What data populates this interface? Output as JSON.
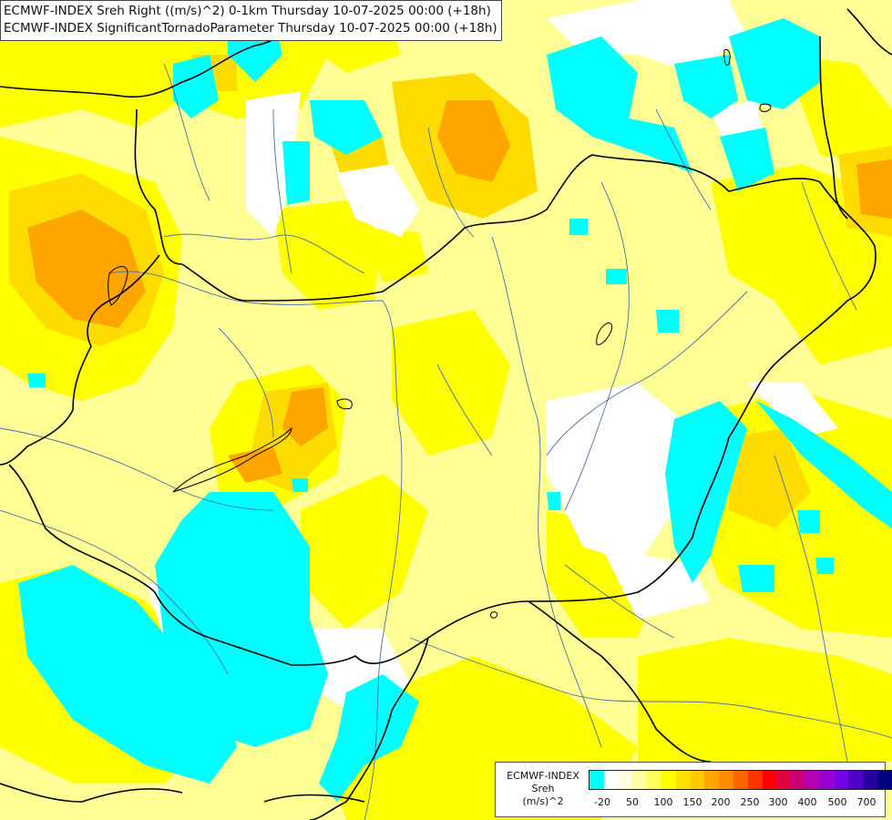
{
  "title_lines": [
    "ECMWF-INDEX Sreh Right ((m/s)^2) 0-1km Thursday 10-07-2025 00:00 (+18h)",
    "ECMWF-INDEX SignificantTornadoParameter Thursday 10-07-2025 00:00 (+18h)"
  ],
  "legend": {
    "line1": "ECMWF-INDEX",
    "line2": "Sreh",
    "line3": "(m/s)^2",
    "colors": [
      "#00ffff",
      "#ffffff",
      "#ffffe0",
      "#ffffa0",
      "#ffff60",
      "#ffff00",
      "#ffe000",
      "#ffc800",
      "#ffa500",
      "#ff8c00",
      "#ff6400",
      "#ff3200",
      "#ff0000",
      "#e0003c",
      "#c80078",
      "#b400b4",
      "#9600d2",
      "#7800e6",
      "#5000c8",
      "#2800a0",
      "#000080"
    ],
    "ticks": [
      "-20",
      "50",
      "100",
      "150",
      "200",
      "250",
      "300",
      "400",
      "500",
      "700"
    ]
  },
  "palette": {
    "pale_yellow": "#ffff96",
    "yellow": "#ffff00",
    "gold": "#ffdc00",
    "orange": "#ffa500",
    "cyan": "#00ffff",
    "white": "#ffffff"
  }
}
